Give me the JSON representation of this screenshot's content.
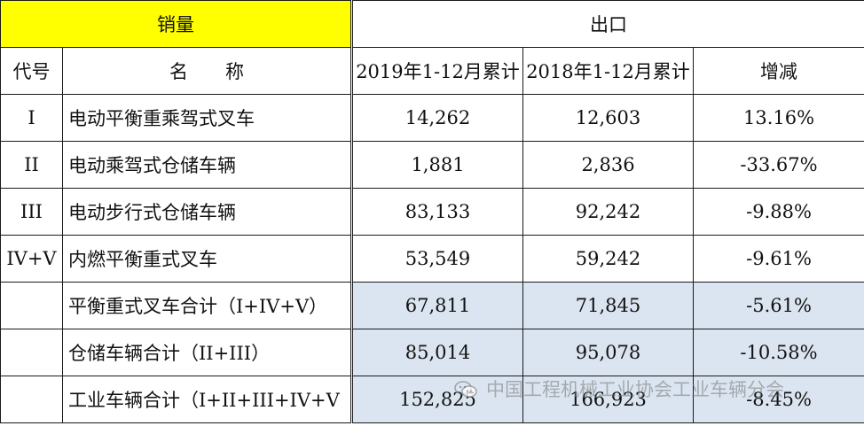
{
  "header": {
    "sales_label": "销量",
    "export_label": "出口",
    "col_code": "代号",
    "col_name": "名　　称",
    "col_2019": "2019年1-12月累计",
    "col_2018": "2018年1-12月累计",
    "col_change": "增减"
  },
  "rows": [
    {
      "code": "I",
      "name": "电动平衡重乘驾式叉车",
      "v2019": "14,262",
      "v2018": "12,603",
      "change": "13.16%"
    },
    {
      "code": "II",
      "name": "电动乘驾式仓储车辆",
      "v2019": "1,881",
      "v2018": "2,836",
      "change": "-33.67%"
    },
    {
      "code": "III",
      "name": "电动步行式仓储车辆",
      "v2019": "83,133",
      "v2018": "92,242",
      "change": "-9.88%"
    },
    {
      "code": "IV+V",
      "name": "内燃平衡重式叉车",
      "v2019": "53,549",
      "v2018": "59,242",
      "change": "-9.61%"
    },
    {
      "code": "",
      "name": "平衡重式叉车合计（I+IV+V）",
      "v2019": "67,811",
      "v2018": "71,845",
      "change": "-5.61%"
    },
    {
      "code": "",
      "name": "仓储车辆合计（II+III）",
      "v2019": "85,014",
      "v2018": "95,078",
      "change": "-10.58%"
    },
    {
      "code": "",
      "name": "工业车辆合计（I+II+III+IV+V",
      "v2019": "152,825",
      "v2018": "166,923",
      "change": "-8.45%"
    }
  ],
  "watermark": {
    "text": "中国工程机械工业协会工业车辆分会",
    "icon": "wechat-icon"
  },
  "colors": {
    "header_yellow": "#ffff00",
    "subtotal_blue": "#dbe5f1"
  }
}
